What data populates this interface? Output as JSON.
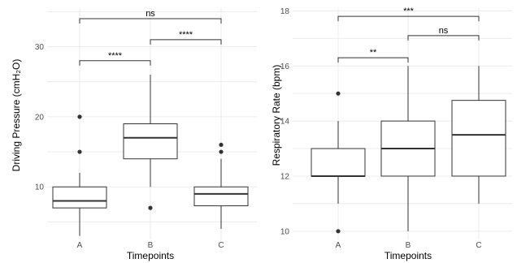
{
  "chart_data": [
    {
      "type": "boxplot",
      "xlabel": "Timepoints",
      "ylabel": "Driving Pressure (cmH₂O)",
      "ylim": [
        2.5,
        35.5
      ],
      "yticks": [
        "10",
        "20",
        "30"
      ],
      "ytick_values": [
        10,
        20,
        30
      ],
      "categories": [
        "A",
        "B",
        "C"
      ],
      "boxes": [
        {
          "category": "A",
          "whisker_low": 3,
          "q1": 7,
          "median": 8,
          "q3": 10,
          "whisker_high": 12,
          "outliers": [
            15,
            20
          ]
        },
        {
          "category": "B",
          "whisker_low": 10,
          "q1": 14,
          "median": 17,
          "q3": 19,
          "whisker_high": 26,
          "outliers": [
            7
          ]
        },
        {
          "category": "C",
          "whisker_low": 4,
          "q1": 7.3,
          "median": 9,
          "q3": 10,
          "whisker_high": 14,
          "outliers": [
            15,
            16
          ]
        }
      ],
      "comparisons": [
        {
          "from": "A",
          "to": "B",
          "label": "****",
          "y": 28
        },
        {
          "from": "B",
          "to": "C",
          "label": "****",
          "y": 31
        },
        {
          "from": "A",
          "to": "C",
          "label": "ns",
          "y": 34
        }
      ],
      "grid": true
    },
    {
      "type": "boxplot",
      "xlabel": "Timepoints",
      "ylabel": "Respiratory Rate (bpm)",
      "ylim": [
        9.7,
        18.1
      ],
      "yticks": [
        "10",
        "12",
        "14",
        "16",
        "18"
      ],
      "ytick_values": [
        10,
        12,
        14,
        16,
        18
      ],
      "categories": [
        "A",
        "B",
        "C"
      ],
      "boxes": [
        {
          "category": "A",
          "whisker_low": 11,
          "q1": 12,
          "median": 12,
          "q3": 13,
          "whisker_high": 14,
          "outliers": [
            10,
            15
          ]
        },
        {
          "category": "B",
          "whisker_low": 10,
          "q1": 12,
          "median": 13,
          "q3": 14,
          "whisker_high": 16,
          "outliers": []
        },
        {
          "category": "C",
          "whisker_low": 11,
          "q1": 12,
          "median": 13.5,
          "q3": 14.75,
          "whisker_high": 16,
          "outliers": []
        }
      ],
      "comparisons": [
        {
          "from": "A",
          "to": "B",
          "label": "**",
          "y": 16.3
        },
        {
          "from": "B",
          "to": "C",
          "label": "ns",
          "y": 17.1
        },
        {
          "from": "A",
          "to": "C",
          "label": "***",
          "y": 17.8
        }
      ],
      "grid": true
    }
  ]
}
